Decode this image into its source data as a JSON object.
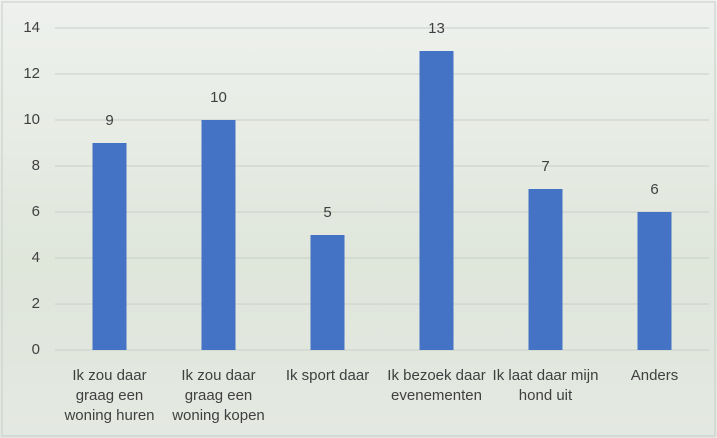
{
  "chart_data": {
    "type": "bar",
    "categories": [
      "Ik zou daar graag een woning huren",
      "Ik zou daar graag een woning kopen",
      "Ik sport daar",
      "Ik bezoek daar evenementen",
      "Ik laat daar mijn hond uit",
      "Anders"
    ],
    "values": [
      9,
      10,
      5,
      13,
      7,
      6
    ],
    "color": "#4472c4",
    "ylim": [
      0,
      14
    ],
    "yticks": [
      0,
      2,
      4,
      6,
      8,
      10,
      12,
      14
    ],
    "grid": true
  }
}
